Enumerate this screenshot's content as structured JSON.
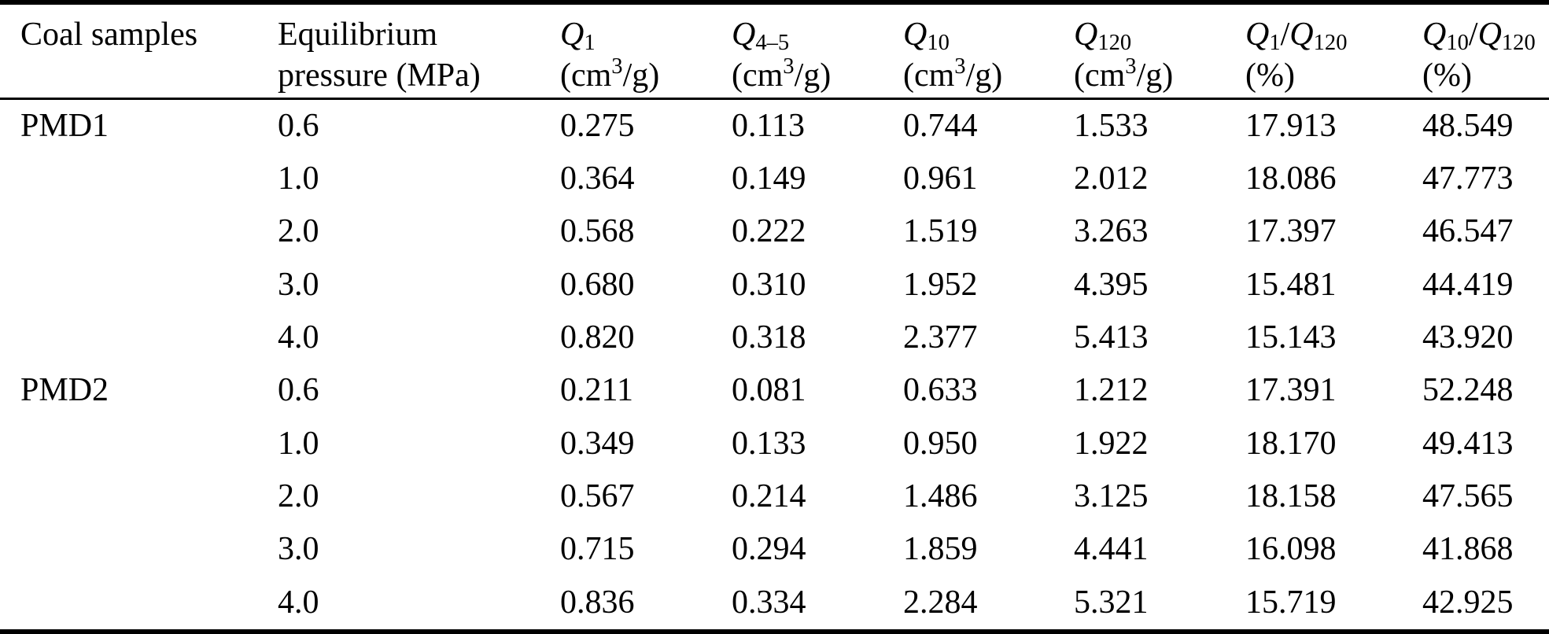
{
  "table": {
    "header": {
      "coal_samples": {
        "label": "Coal samples"
      },
      "pressure": {
        "line1": "Equilibrium",
        "line2": "pressure (MPa)"
      },
      "q1": {
        "symbol": "Q",
        "sub": "1",
        "unit_pre": "(cm",
        "unit_sup": "3",
        "unit_post": "/g)"
      },
      "q45": {
        "symbol": "Q",
        "sub": "4–5",
        "unit_pre": "(cm",
        "unit_sup": "3",
        "unit_post": "/g)"
      },
      "q10": {
        "symbol": "Q",
        "sub": "10",
        "unit_pre": "(cm",
        "unit_sup": "3",
        "unit_post": "/g)"
      },
      "q120": {
        "symbol": "Q",
        "sub": "120",
        "unit_pre": "(cm",
        "unit_sup": "3",
        "unit_post": "/g)"
      },
      "q1_q120": {
        "num_symbol": "Q",
        "num_sub": "1",
        "slash": "/",
        "den_symbol": "Q",
        "den_sub": "120",
        "unit": "(%)"
      },
      "q10_q120": {
        "num_symbol": "Q",
        "num_sub": "10",
        "slash": "/",
        "den_symbol": "Q",
        "den_sub": "120",
        "unit": "(%)"
      }
    },
    "rows": [
      {
        "sample": "PMD1",
        "pressure": "0.6",
        "q1": "0.275",
        "q45": "0.113",
        "q10": "0.744",
        "q120": "1.533",
        "q1_q120": "17.913",
        "q10_q120": "48.549"
      },
      {
        "sample": "",
        "pressure": "1.0",
        "q1": "0.364",
        "q45": "0.149",
        "q10": "0.961",
        "q120": "2.012",
        "q1_q120": "18.086",
        "q10_q120": "47.773"
      },
      {
        "sample": "",
        "pressure": "2.0",
        "q1": "0.568",
        "q45": "0.222",
        "q10": "1.519",
        "q120": "3.263",
        "q1_q120": "17.397",
        "q10_q120": "46.547"
      },
      {
        "sample": "",
        "pressure": "3.0",
        "q1": "0.680",
        "q45": "0.310",
        "q10": "1.952",
        "q120": "4.395",
        "q1_q120": "15.481",
        "q10_q120": "44.419"
      },
      {
        "sample": "",
        "pressure": "4.0",
        "q1": "0.820",
        "q45": "0.318",
        "q10": "2.377",
        "q120": "5.413",
        "q1_q120": "15.143",
        "q10_q120": "43.920"
      },
      {
        "sample": "PMD2",
        "pressure": "0.6",
        "q1": "0.211",
        "q45": "0.081",
        "q10": "0.633",
        "q120": "1.212",
        "q1_q120": "17.391",
        "q10_q120": "52.248"
      },
      {
        "sample": "",
        "pressure": "1.0",
        "q1": "0.349",
        "q45": "0.133",
        "q10": "0.950",
        "q120": "1.922",
        "q1_q120": "18.170",
        "q10_q120": "49.413"
      },
      {
        "sample": "",
        "pressure": "2.0",
        "q1": "0.567",
        "q45": "0.214",
        "q10": "1.486",
        "q120": "3.125",
        "q1_q120": "18.158",
        "q10_q120": "47.565"
      },
      {
        "sample": "",
        "pressure": "3.0",
        "q1": "0.715",
        "q45": "0.294",
        "q10": "1.859",
        "q120": "4.441",
        "q1_q120": "16.098",
        "q10_q120": "41.868"
      },
      {
        "sample": "",
        "pressure": "4.0",
        "q1": "0.836",
        "q45": "0.334",
        "q10": "2.284",
        "q120": "5.321",
        "q1_q120": "15.719",
        "q10_q120": "42.925"
      }
    ]
  }
}
